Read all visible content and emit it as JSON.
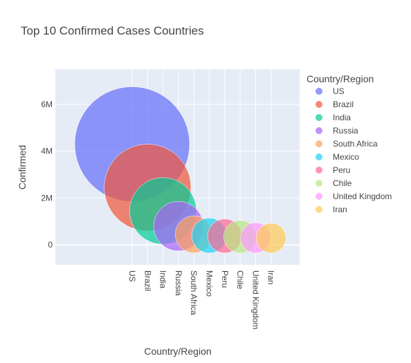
{
  "chart_data": {
    "type": "scatter",
    "title": "Top 10 Confirmed Cases Countries",
    "xlabel": "Country/Region",
    "ylabel": "Confirmed",
    "ylim": [
      -850000,
      7500000
    ],
    "yticks": [
      0,
      2000000,
      4000000,
      6000000
    ],
    "ytick_labels": [
      "0",
      "2M",
      "4M",
      "6M"
    ],
    "legend_title": "Country/Region",
    "legend_position": "right",
    "grid": true,
    "bubble_size": "Confirmed",
    "categories": [
      "US",
      "Brazil",
      "India",
      "Russia",
      "South Africa",
      "Mexico",
      "Peru",
      "Chile",
      "United Kingdom",
      "Iran"
    ],
    "series": [
      {
        "name": "US",
        "x": "US",
        "y": 4300000,
        "color": "#636EFA"
      },
      {
        "name": "Brazil",
        "x": "Brazil",
        "y": 2450000,
        "color": "#EF553B"
      },
      {
        "name": "India",
        "x": "India",
        "y": 1450000,
        "color": "#00CC96"
      },
      {
        "name": "Russia",
        "x": "Russia",
        "y": 800000,
        "color": "#AB63FA"
      },
      {
        "name": "South Africa",
        "x": "South Africa",
        "y": 450000,
        "color": "#FFA15A"
      },
      {
        "name": "Mexico",
        "x": "Mexico",
        "y": 400000,
        "color": "#19D3F3"
      },
      {
        "name": "Peru",
        "x": "Peru",
        "y": 380000,
        "color": "#FF6692"
      },
      {
        "name": "Chile",
        "x": "Chile",
        "y": 350000,
        "color": "#B6E880"
      },
      {
        "name": "United Kingdom",
        "x": "United Kingdom",
        "y": 300000,
        "color": "#FF97FF"
      },
      {
        "name": "Iran",
        "x": "Iran",
        "y": 290000,
        "color": "#FECB52"
      }
    ]
  }
}
